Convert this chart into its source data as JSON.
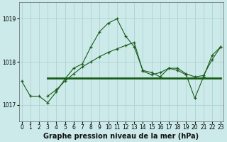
{
  "title": "Graphe pression niveau de la mer (hPa)",
  "bg_color": "#cceaea",
  "grid_color": "#aacccc",
  "line_color": "#1a5c1a",
  "xlim": [
    -0.3,
    23.3
  ],
  "ylim": [
    1016.62,
    1019.38
  ],
  "yticks": [
    1017,
    1018,
    1019
  ],
  "xticks": [
    0,
    1,
    2,
    3,
    4,
    5,
    6,
    7,
    8,
    9,
    10,
    11,
    12,
    13,
    14,
    15,
    16,
    17,
    18,
    19,
    20,
    21,
    22,
    23
  ],
  "series1_x": [
    0,
    1,
    2,
    3,
    4,
    5,
    6,
    7,
    8,
    9,
    10,
    11,
    12,
    13,
    14,
    15,
    16,
    17,
    18,
    19,
    20,
    21,
    22,
    23
  ],
  "series1_y": [
    1017.55,
    1017.2,
    1017.2,
    1017.05,
    1017.3,
    1017.6,
    1017.85,
    1017.95,
    1018.35,
    1018.7,
    1018.9,
    1019.0,
    1018.6,
    1018.35,
    1017.8,
    1017.75,
    1017.65,
    1017.85,
    1017.8,
    1017.7,
    1017.15,
    1017.65,
    1018.15,
    1018.35
  ],
  "series2_x": [
    3,
    4,
    5,
    6,
    7,
    8,
    9,
    10,
    11,
    12,
    13,
    14,
    15,
    16,
    17,
    18,
    19,
    20,
    21,
    22,
    23
  ],
  "series2_y": [
    1017.62,
    1017.62,
    1017.62,
    1017.62,
    1017.62,
    1017.62,
    1017.62,
    1017.62,
    1017.62,
    1017.62,
    1017.62,
    1017.62,
    1017.62,
    1017.62,
    1017.62,
    1017.62,
    1017.62,
    1017.62,
    1017.62,
    1017.62,
    1017.62
  ],
  "series3_x": [
    3,
    4,
    5,
    6,
    7,
    8,
    9,
    10,
    11,
    12,
    13,
    14,
    15,
    16,
    17,
    18,
    19,
    20,
    21,
    22,
    23
  ],
  "series3_y": [
    1017.2,
    1017.35,
    1017.55,
    1017.72,
    1017.88,
    1018.0,
    1018.12,
    1018.22,
    1018.3,
    1018.38,
    1018.45,
    1017.78,
    1017.7,
    1017.75,
    1017.85,
    1017.85,
    1017.72,
    1017.65,
    1017.68,
    1018.05,
    1018.35
  ],
  "title_fontsize": 7,
  "tick_fontsize": 5.5
}
